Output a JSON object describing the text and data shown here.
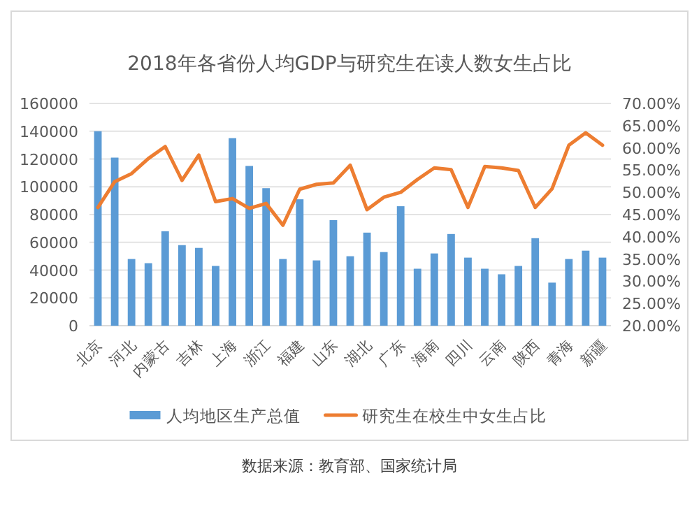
{
  "chart_data": {
    "type": "bar",
    "title": "2018年各省份人均GDP与研究生在读人数女生占比",
    "categories": [
      "北京",
      null,
      "河北",
      null,
      "内蒙古",
      null,
      "吉林",
      null,
      "上海",
      null,
      "浙江",
      null,
      "福建",
      null,
      "山东",
      null,
      "湖北",
      null,
      "广东",
      null,
      "海南",
      null,
      "四川",
      null,
      "云南",
      null,
      "陕西",
      null,
      "青海",
      null,
      "新疆"
    ],
    "series": [
      {
        "name": "人均地区生产总值",
        "color": "#5b9bd5",
        "values": [
          140000,
          121000,
          48000,
          45000,
          68000,
          58000,
          56000,
          43000,
          135000,
          115000,
          99000,
          48000,
          91000,
          47000,
          76000,
          50000,
          67000,
          53000,
          86000,
          41000,
          52000,
          66000,
          49000,
          41000,
          37000,
          43000,
          63000,
          31000,
          48000,
          54000,
          49000
        ]
      },
      {
        "name": "研究生在校生中女生占比",
        "type": "line",
        "axis": "y2",
        "color": "#ed7d31",
        "values": [
          46.6,
          52.4,
          54.2,
          57.6,
          60.3,
          52.7,
          58.4,
          47.9,
          48.6,
          46.4,
          47.5,
          42.6,
          50.7,
          51.8,
          52.1,
          56.1,
          46.1,
          48.9,
          50.0,
          52.9,
          55.5,
          55.1,
          46.6,
          55.8,
          55.5,
          54.9,
          46.6,
          50.8,
          60.6,
          63.4,
          60.6
        ]
      }
    ],
    "ylim": [
      0,
      160000
    ],
    "yticks": [
      0,
      20000,
      40000,
      60000,
      80000,
      100000,
      120000,
      140000,
      160000
    ],
    "y2lim": [
      20,
      70
    ],
    "y2ticks": [
      {
        "value": 20,
        "label": "20.00%"
      },
      {
        "value": 25,
        "label": "25.00%"
      },
      {
        "value": 30,
        "label": "30.00%"
      },
      {
        "value": 35,
        "label": "35.00%"
      },
      {
        "value": 40,
        "label": "40.00%"
      },
      {
        "value": 45,
        "label": "45.00%"
      },
      {
        "value": 50,
        "label": "50.00%"
      },
      {
        "value": 55,
        "label": "55.00%"
      },
      {
        "value": 60,
        "label": "60.00%"
      },
      {
        "value": 65,
        "label": "65.00%"
      },
      {
        "value": 70,
        "label": "70.00%"
      }
    ],
    "grid": "y",
    "legend": "bottom",
    "annotations": [
      "数据来源：教育部、国家统计局"
    ]
  }
}
